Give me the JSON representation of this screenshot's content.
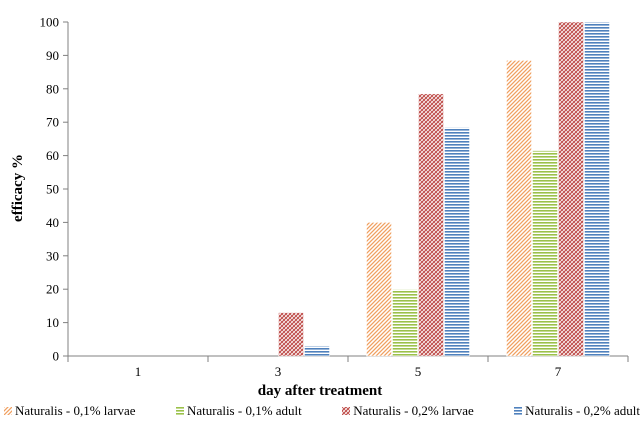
{
  "chart_data": {
    "type": "bar",
    "title": "",
    "xlabel": "day after treatment",
    "ylabel": "efficacy %",
    "categories": [
      "1",
      "3",
      "5",
      "7"
    ],
    "ylim": [
      0,
      100
    ],
    "yticks": [
      0,
      10,
      20,
      30,
      40,
      50,
      60,
      70,
      80,
      90,
      100
    ],
    "grid": false,
    "legend_position": "bottom",
    "series": [
      {
        "name": "Naturalis - 0,1% larvae",
        "values": [
          0,
          0,
          40,
          88.5
        ],
        "color": "#f0a060",
        "pattern": "diagonal-stripes"
      },
      {
        "name": "Naturalis - 0,1% adult",
        "values": [
          0,
          0,
          20,
          61.5
        ],
        "color": "#9bc14a",
        "pattern": "horizontal-stripes"
      },
      {
        "name": "Naturalis - 0,2% larvae",
        "values": [
          0,
          13,
          78.5,
          100
        ],
        "color": "#c0504d",
        "pattern": "diagonal-cross"
      },
      {
        "name": "Naturalis - 0,2% adult",
        "values": [
          0,
          3,
          68.5,
          100
        ],
        "color": "#4f81bd",
        "pattern": "horizontal-stripes"
      }
    ]
  }
}
